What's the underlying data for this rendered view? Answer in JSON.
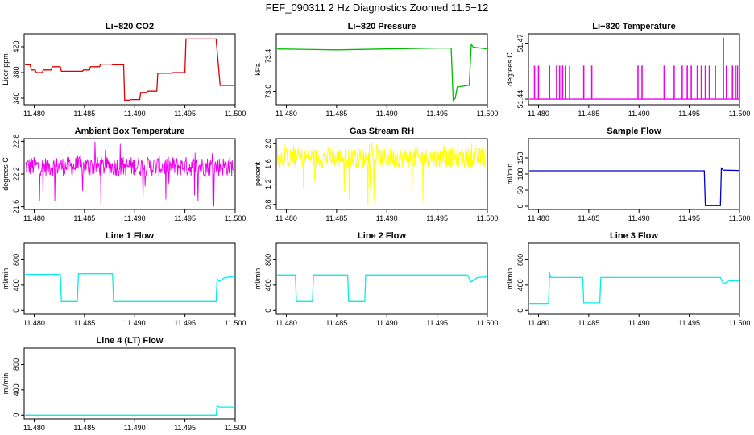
{
  "figure": {
    "title": "FEF_090311  2 Hz Diagnostics Zoomed 11.5−12"
  },
  "chart_data": [
    {
      "type": "line",
      "title": "Li−820 CO2",
      "ylabel": "Licor ppm",
      "color": "#dd0000",
      "xlim": [
        11.479,
        11.5
      ],
      "ylim": [
        330,
        440
      ],
      "xticks": [
        "11.480",
        "11.485",
        "11.490",
        "11.495",
        "11.500"
      ],
      "yticks": [
        "340",
        "380",
        "420"
      ],
      "series": [
        {
          "x": [
            11.4791,
            11.4796,
            11.4797,
            11.4801,
            11.4802,
            11.4808,
            11.4809,
            11.4817,
            11.4818,
            11.4826,
            11.4827,
            11.4848,
            11.4849,
            11.4855,
            11.4856,
            11.4865,
            11.4866,
            11.4877,
            11.4878,
            11.4889,
            11.489,
            11.4895,
            11.4896,
            11.4905,
            11.4906,
            11.4912,
            11.4913,
            11.4922,
            11.4923,
            11.4937,
            11.4938,
            11.495,
            11.4951,
            11.4981,
            11.4985,
            11.5
          ],
          "y": [
            392,
            392,
            384,
            384,
            380,
            380,
            384,
            384,
            389,
            389,
            382,
            382,
            384,
            384,
            389,
            389,
            393,
            393,
            392,
            392,
            337,
            337,
            338,
            338,
            349,
            349,
            351,
            351,
            379,
            379,
            380,
            380,
            432,
            432,
            360,
            360
          ]
        }
      ]
    },
    {
      "type": "line",
      "title": "Li−820 Pressure",
      "ylabel": "kPa",
      "color": "#00bb00",
      "xlim": [
        11.479,
        11.5
      ],
      "ylim": [
        72.85,
        73.65
      ],
      "xticks": [
        "11.480",
        "11.485",
        "11.490",
        "11.495",
        "11.500"
      ],
      "yticks": [
        "73.0",
        "73.4"
      ],
      "series": [
        {
          "x": [
            11.4791,
            11.485,
            11.49,
            11.495,
            11.4964,
            11.4966,
            11.4968,
            11.497,
            11.4982,
            11.4984,
            11.4986,
            11.5
          ],
          "y": [
            73.48,
            73.47,
            73.48,
            73.49,
            73.49,
            72.9,
            72.92,
            73.05,
            73.07,
            73.53,
            73.5,
            73.48
          ]
        }
      ]
    },
    {
      "type": "line",
      "title": "Li−820 Temperature",
      "ylabel": "degrees C",
      "color": "#ee00ee",
      "xlim": [
        11.479,
        11.5
      ],
      "ylim": [
        51.437,
        51.475
      ],
      "xticks": [
        "11.480",
        "11.485",
        "11.490",
        "11.495",
        "11.500"
      ],
      "yticks": [
        "51.44",
        "51.47"
      ],
      "baseline": 51.44,
      "spikes": [
        [
          11.4796,
          51.458
        ],
        [
          11.48,
          51.458
        ],
        [
          11.4811,
          51.458
        ],
        [
          11.4818,
          51.458
        ],
        [
          11.4821,
          51.458
        ],
        [
          11.4824,
          51.458
        ],
        [
          11.4827,
          51.458
        ],
        [
          11.4831,
          51.458
        ],
        [
          11.4845,
          51.458
        ],
        [
          11.4853,
          51.458
        ],
        [
          11.4899,
          51.458
        ],
        [
          11.4903,
          51.458
        ],
        [
          11.4925,
          51.458
        ],
        [
          11.4935,
          51.458
        ],
        [
          11.4943,
          51.458
        ],
        [
          11.4948,
          51.458
        ],
        [
          11.4952,
          51.458
        ],
        [
          11.4958,
          51.458
        ],
        [
          11.4962,
          51.458
        ],
        [
          11.4966,
          51.458
        ],
        [
          11.497,
          51.458
        ],
        [
          11.4976,
          51.458
        ],
        [
          11.4984,
          51.473
        ],
        [
          11.4987,
          51.458
        ],
        [
          11.4993,
          51.458
        ],
        [
          11.4996,
          51.458
        ],
        [
          11.4998,
          51.458
        ]
      ]
    },
    {
      "type": "line",
      "title": "Ambient Box Temperature",
      "ylabel": "degrees C",
      "color": "#ee00ee",
      "xlim": [
        11.479,
        11.5
      ],
      "ylim": [
        21.55,
        22.85
      ],
      "xticks": [
        "11.480",
        "11.485",
        "11.490",
        "11.495",
        "11.500"
      ],
      "yticks": [
        "21.6",
        "22.2",
        "22.8"
      ],
      "noise": {
        "center": 22.34,
        "amplitude": 0.18,
        "spike_min": 21.6,
        "spike_max": 22.8
      }
    },
    {
      "type": "line",
      "title": "Gas Stream RH",
      "ylabel": "percent",
      "color": "#ffff00",
      "xlim": [
        11.479,
        11.5
      ],
      "ylim": [
        0.7,
        2.1
      ],
      "xticks": [
        "11.480",
        "11.485",
        "11.490",
        "11.495",
        "11.500"
      ],
      "yticks": [
        "0.8",
        "1.2",
        "1.6",
        "2.0"
      ],
      "noise": {
        "center": 1.72,
        "amplitude": 0.2,
        "spike_min": 0.75,
        "spike_max": 2.05
      }
    },
    {
      "type": "line",
      "title": "Sample Flow",
      "ylabel": "ml/min",
      "color": "#0000cc",
      "xlim": [
        11.479,
        11.5
      ],
      "ylim": [
        -10,
        210
      ],
      "xticks": [
        "11.480",
        "11.485",
        "11.490",
        "11.495",
        "11.500"
      ],
      "yticks": [
        "0",
        "50",
        "100",
        "150"
      ],
      "series": [
        {
          "x": [
            11.4791,
            11.4965,
            11.4966,
            11.4981,
            11.4982,
            11.4984,
            11.5
          ],
          "y": [
            110,
            110,
            2,
            2,
            118,
            112,
            111
          ]
        }
      ]
    },
    {
      "type": "line",
      "title": "Line 1 Flow",
      "ylabel": "ml/min",
      "color": "#00eeee",
      "xlim": [
        11.479,
        11.5
      ],
      "ylim": [
        -60,
        1060
      ],
      "xticks": [
        "11.480",
        "11.485",
        "11.490",
        "11.495",
        "11.500"
      ],
      "yticks": [
        "0",
        "400",
        "800"
      ],
      "series": [
        {
          "x": [
            11.4791,
            11.4826,
            11.4827,
            11.4843,
            11.4844,
            11.4878,
            11.4879,
            11.4981,
            11.4982,
            11.4984,
            11.499,
            11.5
          ],
          "y": [
            570,
            570,
            140,
            140,
            580,
            580,
            140,
            140,
            500,
            460,
            520,
            540
          ]
        }
      ]
    },
    {
      "type": "line",
      "title": "Line 2 Flow",
      "ylabel": "ml/min",
      "color": "#00eeee",
      "xlim": [
        11.479,
        11.5
      ],
      "ylim": [
        -60,
        1060
      ],
      "xticks": [
        "11.480",
        "11.485",
        "11.490",
        "11.495",
        "11.500"
      ],
      "yticks": [
        "0",
        "400",
        "800"
      ],
      "series": [
        {
          "x": [
            11.4791,
            11.4809,
            11.481,
            11.4826,
            11.4827,
            11.4861,
            11.4862,
            11.4878,
            11.4879,
            11.498,
            11.4984,
            11.499,
            11.5
          ],
          "y": [
            560,
            560,
            140,
            140,
            560,
            560,
            140,
            140,
            560,
            560,
            450,
            520,
            530
          ]
        }
      ]
    },
    {
      "type": "line",
      "title": "Line 3 Flow",
      "ylabel": "ml/min",
      "color": "#00eeee",
      "xlim": [
        11.479,
        11.5
      ],
      "ylim": [
        -60,
        1060
      ],
      "xticks": [
        "11.480",
        "11.485",
        "11.490",
        "11.495",
        "11.500"
      ],
      "yticks": [
        "0",
        "400",
        "800"
      ],
      "series": [
        {
          "x": [
            11.4791,
            11.481,
            11.4811,
            11.4812,
            11.4844,
            11.4845,
            11.4861,
            11.4862,
            11.4981,
            11.4984,
            11.499,
            11.5
          ],
          "y": [
            110,
            110,
            600,
            520,
            520,
            120,
            120,
            520,
            520,
            420,
            470,
            470
          ]
        }
      ]
    },
    {
      "type": "line",
      "title": "Line 4 (LT) Flow",
      "ylabel": "ml/min",
      "color": "#00eeee",
      "xlim": [
        11.479,
        11.5
      ],
      "ylim": [
        -60,
        1060
      ],
      "xticks": [
        "11.480",
        "11.485",
        "11.490",
        "11.495",
        "11.500"
      ],
      "yticks": [
        "0",
        "400",
        "800"
      ],
      "series": [
        {
          "x": [
            11.4791,
            11.4981,
            11.4982,
            11.4984,
            11.5
          ],
          "y": [
            0,
            0,
            150,
            130,
            130
          ]
        }
      ]
    }
  ]
}
